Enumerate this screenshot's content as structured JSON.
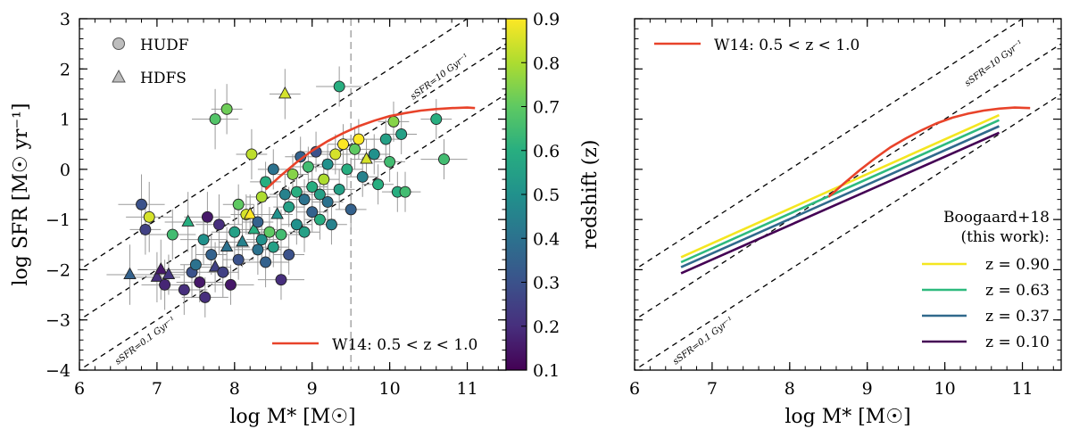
{
  "chart_data": [
    {
      "type": "scatter",
      "panel": "left",
      "xlabel": "log M* [M☉]",
      "ylabel": "log SFR [M☉ yr⁻¹]",
      "xlim": [
        6,
        11.5
      ],
      "ylim": [
        -4,
        3
      ],
      "xticks": [
        "6",
        "7",
        "8",
        "9",
        "10",
        "11"
      ],
      "yticks": [
        "−4",
        "−3",
        "−2",
        "−1",
        "0",
        "1",
        "2",
        "3"
      ],
      "legend_markers": [
        {
          "label": "HUDF",
          "marker": "circle"
        },
        {
          "label": "HDFS",
          "marker": "triangle"
        }
      ],
      "legend_line": {
        "label": "W14: 0.5 < z < 1.0"
      },
      "reference_lines": [
        {
          "label": "sSFR=10 Gyr⁻¹",
          "log_ssfr_yr": -8
        },
        {
          "label": "",
          "log_ssfr_yr": -9
        },
        {
          "label": "sSFR=0.1 Gyr⁻¹",
          "log_ssfr_yr": -10
        }
      ],
      "vertical_line_x": 9.5,
      "colorbar": {
        "label": "redshift (z)",
        "range": [
          0.1,
          0.9
        ],
        "ticks": [
          "0.1",
          "0.2",
          "0.3",
          "0.4",
          "0.5",
          "0.6",
          "0.7",
          "0.8",
          "0.9"
        ]
      },
      "w14_curve": {
        "x": [
          8.4,
          8.6,
          8.8,
          9.0,
          9.2,
          9.4,
          9.6,
          9.8,
          10.0,
          10.2,
          10.4,
          10.6,
          10.8,
          11.0,
          11.1
        ],
        "y": [
          -0.4,
          -0.12,
          0.14,
          0.37,
          0.56,
          0.72,
          0.86,
          0.97,
          1.06,
          1.12,
          1.17,
          1.2,
          1.22,
          1.23,
          1.22
        ]
      },
      "points": [
        {
          "x": 7.9,
          "y": 1.2,
          "z": 0.72,
          "m": "c",
          "ex": 0.2,
          "ey": 0.5
        },
        {
          "x": 7.75,
          "y": 1.0,
          "z": 0.68,
          "m": "c",
          "ex": 0.3,
          "ey": 0.6
        },
        {
          "x": 9.35,
          "y": 1.65,
          "z": 0.6,
          "m": "c",
          "ex": 0.3,
          "ey": 0.4
        },
        {
          "x": 8.65,
          "y": 1.5,
          "z": 0.85,
          "m": "t",
          "ex": 0.2,
          "ey": 0.5
        },
        {
          "x": 6.8,
          "y": -0.7,
          "z": 0.3,
          "m": "c",
          "ex": 0.3,
          "ey": 0.6
        },
        {
          "x": 6.9,
          "y": -0.95,
          "z": 0.85,
          "m": "c",
          "ex": 0.3,
          "ey": 0.7
        },
        {
          "x": 6.85,
          "y": -1.2,
          "z": 0.25,
          "m": "c",
          "ex": 0.2,
          "ey": 0.5
        },
        {
          "x": 6.65,
          "y": -2.1,
          "z": 0.35,
          "m": "t",
          "ex": 0.3,
          "ey": 0.6
        },
        {
          "x": 7.0,
          "y": -2.15,
          "z": 0.2,
          "m": "t",
          "ex": 0.3,
          "ey": 0.5
        },
        {
          "x": 7.05,
          "y": -2.0,
          "z": 0.15,
          "m": "t",
          "ex": 0.3,
          "ey": 0.6
        },
        {
          "x": 7.1,
          "y": -2.3,
          "z": 0.18,
          "m": "c",
          "ex": 0.3,
          "ey": 0.5
        },
        {
          "x": 7.15,
          "y": -2.1,
          "z": 0.22,
          "m": "t",
          "ex": 0.2,
          "ey": 0.4
        },
        {
          "x": 7.2,
          "y": -1.3,
          "z": 0.65,
          "m": "c",
          "ex": 0.3,
          "ey": 0.5
        },
        {
          "x": 7.35,
          "y": -2.4,
          "z": 0.2,
          "m": "c",
          "ex": 0.3,
          "ey": 0.5
        },
        {
          "x": 7.4,
          "y": -1.05,
          "z": 0.6,
          "m": "t",
          "ex": 0.3,
          "ey": 0.6
        },
        {
          "x": 7.45,
          "y": -2.05,
          "z": 0.3,
          "m": "c",
          "ex": 0.3,
          "ey": 0.5
        },
        {
          "x": 7.5,
          "y": -1.9,
          "z": 0.4,
          "m": "c",
          "ex": 0.2,
          "ey": 0.4
        },
        {
          "x": 7.55,
          "y": -2.25,
          "z": 0.15,
          "m": "c",
          "ex": 0.3,
          "ey": 0.4
        },
        {
          "x": 7.6,
          "y": -1.4,
          "z": 0.5,
          "m": "c",
          "ex": 0.3,
          "ey": 0.5
        },
        {
          "x": 7.62,
          "y": -2.55,
          "z": 0.2,
          "m": "c",
          "ex": 0.3,
          "ey": 0.4
        },
        {
          "x": 7.65,
          "y": -0.95,
          "z": 0.15,
          "m": "c",
          "ex": 0.3,
          "ey": 0.5
        },
        {
          "x": 7.7,
          "y": -1.7,
          "z": 0.35,
          "m": "c",
          "ex": 0.2,
          "ey": 0.4
        },
        {
          "x": 7.75,
          "y": -1.95,
          "z": 0.25,
          "m": "t",
          "ex": 0.2,
          "ey": 0.5
        },
        {
          "x": 7.8,
          "y": -1.1,
          "z": 0.2,
          "m": "c",
          "ex": 0.3,
          "ey": 0.6
        },
        {
          "x": 7.85,
          "y": -2.05,
          "z": 0.25,
          "m": "c",
          "ex": 0.2,
          "ey": 0.5
        },
        {
          "x": 7.9,
          "y": -1.55,
          "z": 0.4,
          "m": "t",
          "ex": 0.3,
          "ey": 0.4
        },
        {
          "x": 7.95,
          "y": -2.3,
          "z": 0.15,
          "m": "c",
          "ex": 0.3,
          "ey": 0.4
        },
        {
          "x": 8.0,
          "y": -1.25,
          "z": 0.55,
          "m": "c",
          "ex": 0.3,
          "ey": 0.5
        },
        {
          "x": 8.05,
          "y": -0.7,
          "z": 0.7,
          "m": "c",
          "ex": 0.2,
          "ey": 0.4
        },
        {
          "x": 8.05,
          "y": -1.8,
          "z": 0.3,
          "m": "c",
          "ex": 0.2,
          "ey": 0.4
        },
        {
          "x": 8.1,
          "y": -1.45,
          "z": 0.45,
          "m": "t",
          "ex": 0.3,
          "ey": 0.5
        },
        {
          "x": 8.15,
          "y": -0.9,
          "z": 0.85,
          "m": "c",
          "ex": 0.2,
          "ey": 0.4
        },
        {
          "x": 8.2,
          "y": -0.9,
          "z": 0.9,
          "m": "t",
          "ex": 0.2,
          "ey": 0.4
        },
        {
          "x": 8.22,
          "y": 0.3,
          "z": 0.82,
          "m": "c",
          "ex": 0.2,
          "ey": 0.5
        },
        {
          "x": 8.25,
          "y": -1.2,
          "z": 0.6,
          "m": "t",
          "ex": 0.3,
          "ey": 0.5
        },
        {
          "x": 8.3,
          "y": -1.05,
          "z": 0.35,
          "m": "c",
          "ex": 0.2,
          "ey": 0.4
        },
        {
          "x": 8.3,
          "y": -1.6,
          "z": 0.4,
          "m": "c",
          "ex": 0.3,
          "ey": 0.5
        },
        {
          "x": 8.35,
          "y": -0.55,
          "z": 0.8,
          "m": "c",
          "ex": 0.2,
          "ey": 0.4
        },
        {
          "x": 8.35,
          "y": -1.4,
          "z": 0.5,
          "m": "c",
          "ex": 0.2,
          "ey": 0.4
        },
        {
          "x": 8.4,
          "y": -0.25,
          "z": 0.6,
          "m": "c",
          "ex": 0.2,
          "ey": 0.4
        },
        {
          "x": 8.4,
          "y": -1.85,
          "z": 0.35,
          "m": "c",
          "ex": 0.3,
          "ey": 0.5
        },
        {
          "x": 8.45,
          "y": -1.25,
          "z": 0.7,
          "m": "c",
          "ex": 0.2,
          "ey": 0.5
        },
        {
          "x": 8.5,
          "y": 0.0,
          "z": 0.4,
          "m": "c",
          "ex": 0.2,
          "ey": 0.4
        },
        {
          "x": 8.5,
          "y": -1.55,
          "z": 0.55,
          "m": "c",
          "ex": 0.2,
          "ey": 0.4
        },
        {
          "x": 8.55,
          "y": -0.9,
          "z": 0.5,
          "m": "t",
          "ex": 0.2,
          "ey": 0.4
        },
        {
          "x": 8.6,
          "y": -1.3,
          "z": 0.65,
          "m": "c",
          "ex": 0.3,
          "ey": 0.5
        },
        {
          "x": 8.6,
          "y": -2.2,
          "z": 0.2,
          "m": "c",
          "ex": 0.3,
          "ey": 0.4
        },
        {
          "x": 8.65,
          "y": -0.5,
          "z": 0.45,
          "m": "c",
          "ex": 0.2,
          "ey": 0.4
        },
        {
          "x": 8.7,
          "y": -0.75,
          "z": 0.55,
          "m": "c",
          "ex": 0.2,
          "ey": 0.4
        },
        {
          "x": 8.7,
          "y": -1.7,
          "z": 0.3,
          "m": "c",
          "ex": 0.2,
          "ey": 0.4
        },
        {
          "x": 8.75,
          "y": -0.1,
          "z": 0.75,
          "m": "c",
          "ex": 0.2,
          "ey": 0.4
        },
        {
          "x": 8.8,
          "y": -1.1,
          "z": 0.5,
          "m": "c",
          "ex": 0.2,
          "ey": 0.4
        },
        {
          "x": 8.8,
          "y": -0.45,
          "z": 0.6,
          "m": "c",
          "ex": 0.2,
          "ey": 0.4
        },
        {
          "x": 8.85,
          "y": 0.25,
          "z": 0.35,
          "m": "c",
          "ex": 0.2,
          "ey": 0.4
        },
        {
          "x": 8.9,
          "y": -0.6,
          "z": 0.4,
          "m": "c",
          "ex": 0.2,
          "ey": 0.4
        },
        {
          "x": 8.9,
          "y": -1.25,
          "z": 0.55,
          "m": "c",
          "ex": 0.2,
          "ey": 0.4
        },
        {
          "x": 8.95,
          "y": 0.05,
          "z": 0.65,
          "m": "c",
          "ex": 0.2,
          "ey": 0.4
        },
        {
          "x": 9.0,
          "y": -0.35,
          "z": 0.6,
          "m": "c",
          "ex": 0.2,
          "ey": 0.4
        },
        {
          "x": 9.0,
          "y": -0.85,
          "z": 0.35,
          "m": "c",
          "ex": 0.2,
          "ey": 0.4
        },
        {
          "x": 9.05,
          "y": 0.35,
          "z": 0.3,
          "m": "c",
          "ex": 0.2,
          "ey": 0.4
        },
        {
          "x": 9.1,
          "y": -0.5,
          "z": 0.55,
          "m": "c",
          "ex": 0.2,
          "ey": 0.4
        },
        {
          "x": 9.1,
          "y": -1.0,
          "z": 0.6,
          "m": "c",
          "ex": 0.2,
          "ey": 0.4
        },
        {
          "x": 9.15,
          "y": -0.2,
          "z": 0.8,
          "m": "c",
          "ex": 0.2,
          "ey": 0.4
        },
        {
          "x": 9.2,
          "y": 0.1,
          "z": 0.5,
          "m": "c",
          "ex": 0.2,
          "ey": 0.4
        },
        {
          "x": 9.2,
          "y": -0.65,
          "z": 0.4,
          "m": "c",
          "ex": 0.2,
          "ey": 0.4
        },
        {
          "x": 9.25,
          "y": -1.1,
          "z": 0.45,
          "m": "c",
          "ex": 0.2,
          "ey": 0.4
        },
        {
          "x": 9.3,
          "y": 0.3,
          "z": 0.85,
          "m": "c",
          "ex": 0.2,
          "ey": 0.4
        },
        {
          "x": 9.35,
          "y": -0.4,
          "z": 0.55,
          "m": "c",
          "ex": 0.2,
          "ey": 0.4
        },
        {
          "x": 9.4,
          "y": 0.5,
          "z": 0.9,
          "m": "c",
          "ex": 0.2,
          "ey": 0.4
        },
        {
          "x": 9.45,
          "y": 0.0,
          "z": 0.6,
          "m": "c",
          "ex": 0.2,
          "ey": 0.4
        },
        {
          "x": 9.5,
          "y": -0.8,
          "z": 0.35,
          "m": "c",
          "ex": 0.2,
          "ey": 0.4
        },
        {
          "x": 9.55,
          "y": 0.4,
          "z": 0.7,
          "m": "c",
          "ex": 0.2,
          "ey": 0.4
        },
        {
          "x": 9.6,
          "y": 0.6,
          "z": 0.9,
          "m": "c",
          "ex": 0.2,
          "ey": 0.4
        },
        {
          "x": 9.65,
          "y": -0.15,
          "z": 0.45,
          "m": "c",
          "ex": 0.2,
          "ey": 0.4
        },
        {
          "x": 9.7,
          "y": 0.2,
          "z": 0.85,
          "m": "t",
          "ex": 0.2,
          "ey": 0.4
        },
        {
          "x": 9.8,
          "y": 0.3,
          "z": 0.5,
          "m": "c",
          "ex": 0.2,
          "ey": 0.4
        },
        {
          "x": 9.85,
          "y": -0.3,
          "z": 0.6,
          "m": "c",
          "ex": 0.2,
          "ey": 0.4
        },
        {
          "x": 9.95,
          "y": 0.6,
          "z": 0.55,
          "m": "c",
          "ex": 0.2,
          "ey": 0.4
        },
        {
          "x": 10.0,
          "y": 0.15,
          "z": 0.65,
          "m": "c",
          "ex": 0.2,
          "ey": 0.4
        },
        {
          "x": 10.05,
          "y": 0.95,
          "z": 0.75,
          "m": "c",
          "ex": 0.2,
          "ey": 0.4
        },
        {
          "x": 10.1,
          "y": -0.45,
          "z": 0.6,
          "m": "c",
          "ex": 0.2,
          "ey": 0.4
        },
        {
          "x": 10.15,
          "y": 0.7,
          "z": 0.55,
          "m": "c",
          "ex": 0.2,
          "ey": 0.4
        },
        {
          "x": 10.2,
          "y": -0.45,
          "z": 0.65,
          "m": "c",
          "ex": 0.2,
          "ey": 0.4
        },
        {
          "x": 10.6,
          "y": 1.0,
          "z": 0.6,
          "m": "c",
          "ex": 0.2,
          "ey": 0.4
        },
        {
          "x": 10.7,
          "y": 0.2,
          "z": 0.65,
          "m": "c",
          "ex": 0.3,
          "ey": 0.4
        }
      ]
    },
    {
      "type": "line",
      "panel": "right",
      "xlabel": "log M* [M☉]",
      "ylabel": "",
      "xlim": [
        6,
        11.5
      ],
      "ylim": [
        -4,
        3
      ],
      "xticks": [
        "6",
        "7",
        "8",
        "9",
        "10",
        "11"
      ],
      "legend_line": {
        "label": "W14: 0.5 < z < 1.0"
      },
      "reference_lines": [
        {
          "label": "sSFR=10 Gyr⁻¹",
          "log_ssfr_yr": -8
        },
        {
          "label": "",
          "log_ssfr_yr": -9
        },
        {
          "label": "sSFR=0.1 Gyr⁻¹",
          "log_ssfr_yr": -10
        }
      ],
      "legend_title": [
        "Boogaard+18",
        "(this work):"
      ],
      "series": [
        {
          "name": "z = 0.90",
          "z": 0.9,
          "color": "#f4e620",
          "x": [
            6.6,
            10.7
          ],
          "y": [
            -1.75,
            1.08
          ]
        },
        {
          "name": "z = 0.63",
          "z": 0.63,
          "color": "#2dba7e",
          "x": [
            6.6,
            10.7
          ],
          "y": [
            -1.85,
            0.98
          ]
        },
        {
          "name": "z = 0.37",
          "z": 0.37,
          "color": "#30698c",
          "x": [
            6.6,
            10.7
          ],
          "y": [
            -1.95,
            0.86
          ]
        },
        {
          "name": "z = 0.10",
          "z": 0.1,
          "color": "#440154",
          "x": [
            6.6,
            10.7
          ],
          "y": [
            -2.07,
            0.73
          ]
        }
      ],
      "w14_curve": {
        "x": [
          8.5,
          8.7,
          8.9,
          9.1,
          9.3,
          9.5,
          9.7,
          9.9,
          10.1,
          10.3,
          10.5,
          10.7,
          10.9,
          11.1
        ],
        "y": [
          -0.55,
          -0.28,
          -0.02,
          0.22,
          0.44,
          0.62,
          0.78,
          0.92,
          1.03,
          1.11,
          1.17,
          1.21,
          1.23,
          1.22
        ]
      }
    }
  ],
  "colors": {
    "w14": "#e8432a",
    "viridis": [
      "#440154",
      "#472f7d",
      "#3b528b",
      "#2c728e",
      "#21918c",
      "#28ae80",
      "#5ec962",
      "#addc30",
      "#fde725"
    ]
  }
}
